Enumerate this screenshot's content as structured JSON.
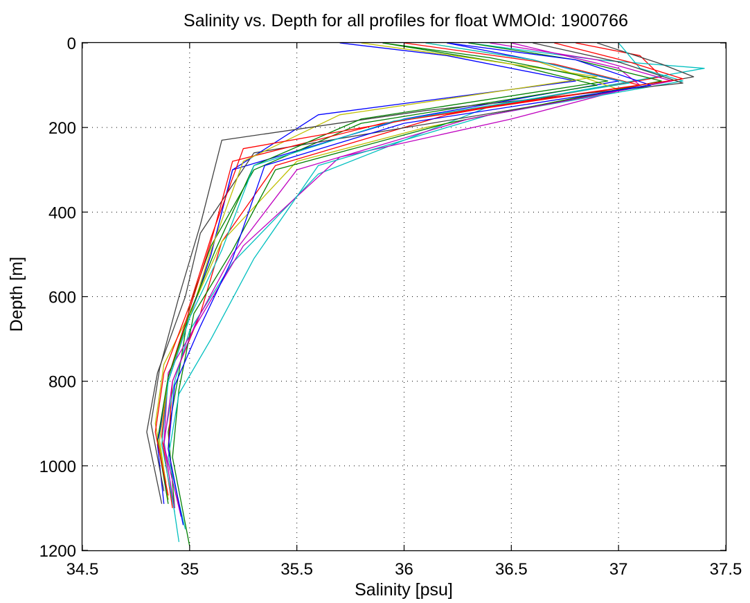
{
  "chart_data": {
    "type": "line",
    "title": "Salinity vs. Depth for all profiles for float WMOId: 1900766",
    "xlabel": "Salinity [psu]",
    "ylabel": "Depth [m]",
    "xlim": [
      34.5,
      37.5
    ],
    "ylim": [
      0,
      1200
    ],
    "y_axis_inverted": true,
    "grid": true,
    "grid_style": "dotted",
    "xticks": [
      34.5,
      35,
      35.5,
      36,
      36.5,
      37,
      37.5
    ],
    "xtick_labels": [
      "34.5",
      "35",
      "35.5",
      "36",
      "36.5",
      "37",
      "37.5"
    ],
    "yticks": [
      0,
      200,
      400,
      600,
      800,
      1000,
      1200
    ],
    "ytick_labels": [
      "0",
      "200",
      "400",
      "600",
      "800",
      "1000",
      "1200"
    ],
    "series_colors": [
      "#0000ff",
      "#008000",
      "#ff0000",
      "#00bfbf",
      "#bf00bf",
      "#bfbf00",
      "#404040"
    ],
    "series": [
      {
        "x": [
          36.2,
          36.6,
          37.0,
          36.0,
          35.2,
          35.1,
          35.0,
          34.9,
          34.85,
          34.88
        ],
        "y": [
          0,
          40,
          90,
          180,
          300,
          500,
          650,
          800,
          950,
          1090
        ]
      },
      {
        "x": [
          35.9,
          36.5,
          36.9,
          35.8,
          35.3,
          35.1,
          35.0,
          34.95,
          34.9,
          34.93
        ],
        "y": [
          0,
          50,
          100,
          190,
          300,
          480,
          620,
          780,
          920,
          1100
        ]
      },
      {
        "x": [
          36.8,
          37.1,
          37.2,
          36.2,
          35.4,
          35.15,
          35.05,
          34.92,
          34.9,
          34.96
        ],
        "y": [
          0,
          30,
          80,
          170,
          290,
          470,
          640,
          800,
          960,
          1120
        ]
      },
      {
        "x": [
          36.3,
          36.9,
          37.4,
          36.4,
          35.6,
          35.2,
          35.0,
          34.93,
          34.88,
          34.95
        ],
        "y": [
          0,
          40,
          60,
          150,
          310,
          520,
          680,
          800,
          940,
          1180
        ]
      },
      {
        "x": [
          36.5,
          37.0,
          37.1,
          36.5,
          35.7,
          35.25,
          35.05,
          34.9,
          34.88,
          34.96
        ],
        "y": [
          0,
          60,
          100,
          180,
          270,
          480,
          650,
          780,
          950,
          1120
        ]
      },
      {
        "x": [
          36.1,
          36.6,
          37.0,
          36.1,
          35.5,
          35.15,
          35.0,
          34.88,
          34.84,
          34.89
        ],
        "y": [
          0,
          40,
          110,
          200,
          280,
          470,
          640,
          760,
          900,
          1040
        ]
      },
      {
        "x": [
          36.9,
          37.2,
          37.35,
          36.6,
          35.3,
          35.05,
          34.98,
          34.85,
          34.8,
          34.87
        ],
        "y": [
          0,
          50,
          80,
          150,
          260,
          450,
          600,
          780,
          920,
          1090
        ]
      },
      {
        "x": [
          35.7,
          36.2,
          36.8,
          35.6,
          35.2,
          35.1,
          35.0,
          34.9,
          34.85,
          34.9
        ],
        "y": [
          0,
          30,
          90,
          170,
          300,
          500,
          650,
          800,
          940,
          1080
        ]
      },
      {
        "x": [
          36.3,
          36.8,
          37.2,
          36.2,
          35.4,
          35.2,
          35.02,
          34.95,
          34.92,
          35.0
        ],
        "y": [
          0,
          40,
          90,
          190,
          300,
          490,
          640,
          820,
          980,
          1190
        ]
      },
      {
        "x": [
          36.0,
          36.7,
          37.1,
          35.9,
          35.2,
          35.1,
          35.0,
          34.9,
          34.87,
          34.92
        ],
        "y": [
          0,
          50,
          100,
          190,
          280,
          470,
          630,
          790,
          930,
          1100
        ]
      },
      {
        "x": [
          37.0,
          37.1,
          37.3,
          36.4,
          35.6,
          35.3,
          35.1,
          34.95,
          34.9,
          34.98
        ],
        "y": [
          0,
          60,
          90,
          170,
          290,
          510,
          700,
          830,
          980,
          1150
        ]
      },
      {
        "x": [
          36.4,
          36.9,
          37.25,
          36.3,
          35.5,
          35.2,
          35.03,
          34.92,
          34.88,
          34.93
        ],
        "y": [
          0,
          40,
          90,
          180,
          300,
          500,
          660,
          800,
          950,
          1100
        ]
      },
      {
        "x": [
          35.8,
          36.3,
          36.9,
          35.7,
          35.25,
          35.1,
          35.0,
          34.9,
          34.86,
          34.9
        ],
        "y": [
          0,
          35,
          80,
          170,
          280,
          490,
          650,
          790,
          940,
          1080
        ]
      },
      {
        "x": [
          36.6,
          37.0,
          37.3,
          36.1,
          35.15,
          35.05,
          34.95,
          34.86,
          34.82,
          34.88
        ],
        "y": [
          0,
          45,
          95,
          160,
          230,
          430,
          600,
          770,
          900,
          1060
        ]
      },
      {
        "x": [
          36.2,
          36.8,
          37.15,
          36.0,
          35.35,
          35.2,
          35.05,
          34.93,
          34.9,
          34.97
        ],
        "y": [
          0,
          40,
          100,
          190,
          290,
          510,
          670,
          810,
          960,
          1140
        ]
      },
      {
        "x": [
          35.9,
          36.4,
          36.95,
          35.8,
          35.3,
          35.12,
          35.0,
          34.9,
          34.85,
          34.9
        ],
        "y": [
          0,
          35,
          90,
          180,
          290,
          490,
          640,
          790,
          940,
          1090
        ]
      },
      {
        "x": [
          36.7,
          37.05,
          37.3,
          36.2,
          35.25,
          35.1,
          35.0,
          34.88,
          34.84,
          34.9
        ],
        "y": [
          0,
          45,
          85,
          165,
          250,
          460,
          620,
          780,
          920,
          1070
        ]
      },
      {
        "x": [
          36.1,
          36.6,
          37.05,
          35.95,
          35.3,
          35.15,
          35.0,
          34.9,
          34.87,
          34.93
        ],
        "y": [
          0,
          40,
          95,
          185,
          290,
          490,
          650,
          800,
          950,
          1110
        ]
      }
    ]
  }
}
